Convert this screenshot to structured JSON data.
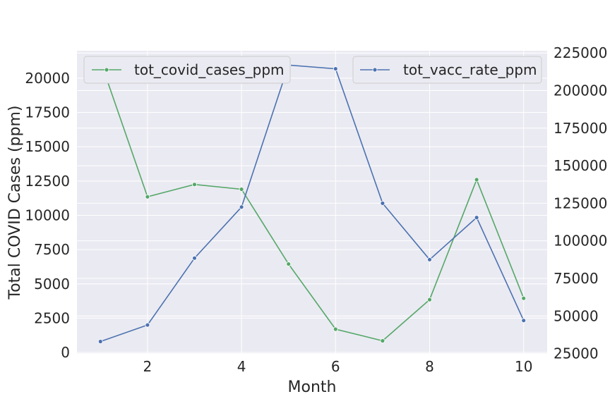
{
  "chart_data": {
    "type": "line",
    "xlabel": "Month",
    "ylabel": "Total COVID Cases (ppm)",
    "y2label": "",
    "x": [
      1,
      2,
      3,
      4,
      5,
      6,
      7,
      8,
      9,
      10
    ],
    "xlim": [
      0.5,
      10.5
    ],
    "xticks": [
      2,
      4,
      6,
      8,
      10
    ],
    "ylim": [
      -100,
      22000
    ],
    "yticks": [
      0,
      2500,
      5000,
      7500,
      10000,
      12500,
      15000,
      17500,
      20000
    ],
    "y2lim": [
      24800,
      226500
    ],
    "y2ticks": [
      25000,
      50000,
      75000,
      100000,
      125000,
      150000,
      175000,
      200000,
      225000
    ],
    "grid": true,
    "series": [
      {
        "name": "tot_covid_cases_ppm",
        "axis": "left",
        "color": "#55a868",
        "values": [
          21250,
          11350,
          12250,
          11900,
          6450,
          1700,
          850,
          3850,
          12600,
          3950
        ],
        "legend_position": "top-left"
      },
      {
        "name": "tot_vacc_rate_ppm",
        "axis": "right",
        "color": "#4c72b0",
        "values": [
          33000,
          44000,
          88500,
          122500,
          217000,
          214500,
          125000,
          87500,
          115500,
          47000
        ],
        "legend_position": "top-right"
      }
    ]
  }
}
